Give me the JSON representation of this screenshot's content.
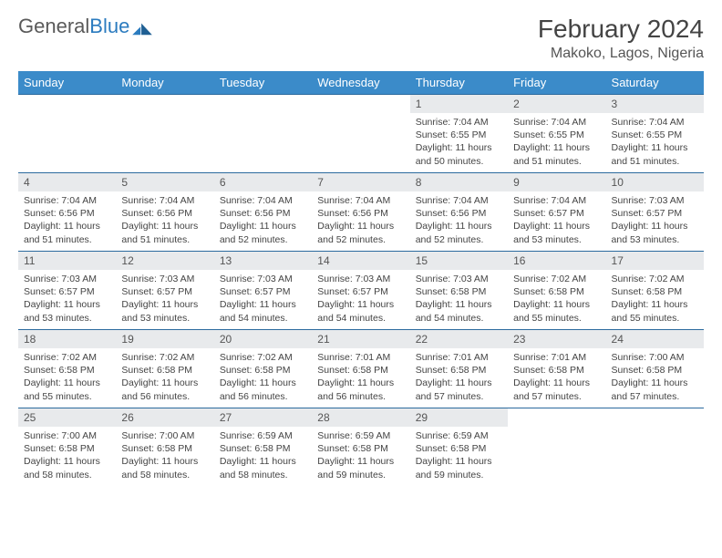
{
  "brand": {
    "part1": "General",
    "part2": "Blue"
  },
  "title": "February 2024",
  "location": "Makoko, Lagos, Nigeria",
  "colors": {
    "header_bg": "#3b8bc9",
    "row_border": "#2b6a9e",
    "daynum_bg": "#e8eaec",
    "text": "#444444"
  },
  "dayHeaders": [
    "Sunday",
    "Monday",
    "Tuesday",
    "Wednesday",
    "Thursday",
    "Friday",
    "Saturday"
  ],
  "weeks": [
    [
      {
        "n": "",
        "sr": "",
        "ss": "",
        "dl": ""
      },
      {
        "n": "",
        "sr": "",
        "ss": "",
        "dl": ""
      },
      {
        "n": "",
        "sr": "",
        "ss": "",
        "dl": ""
      },
      {
        "n": "",
        "sr": "",
        "ss": "",
        "dl": ""
      },
      {
        "n": "1",
        "sr": "Sunrise: 7:04 AM",
        "ss": "Sunset: 6:55 PM",
        "dl": "Daylight: 11 hours and 50 minutes."
      },
      {
        "n": "2",
        "sr": "Sunrise: 7:04 AM",
        "ss": "Sunset: 6:55 PM",
        "dl": "Daylight: 11 hours and 51 minutes."
      },
      {
        "n": "3",
        "sr": "Sunrise: 7:04 AM",
        "ss": "Sunset: 6:55 PM",
        "dl": "Daylight: 11 hours and 51 minutes."
      }
    ],
    [
      {
        "n": "4",
        "sr": "Sunrise: 7:04 AM",
        "ss": "Sunset: 6:56 PM",
        "dl": "Daylight: 11 hours and 51 minutes."
      },
      {
        "n": "5",
        "sr": "Sunrise: 7:04 AM",
        "ss": "Sunset: 6:56 PM",
        "dl": "Daylight: 11 hours and 51 minutes."
      },
      {
        "n": "6",
        "sr": "Sunrise: 7:04 AM",
        "ss": "Sunset: 6:56 PM",
        "dl": "Daylight: 11 hours and 52 minutes."
      },
      {
        "n": "7",
        "sr": "Sunrise: 7:04 AM",
        "ss": "Sunset: 6:56 PM",
        "dl": "Daylight: 11 hours and 52 minutes."
      },
      {
        "n": "8",
        "sr": "Sunrise: 7:04 AM",
        "ss": "Sunset: 6:56 PM",
        "dl": "Daylight: 11 hours and 52 minutes."
      },
      {
        "n": "9",
        "sr": "Sunrise: 7:04 AM",
        "ss": "Sunset: 6:57 PM",
        "dl": "Daylight: 11 hours and 53 minutes."
      },
      {
        "n": "10",
        "sr": "Sunrise: 7:03 AM",
        "ss": "Sunset: 6:57 PM",
        "dl": "Daylight: 11 hours and 53 minutes."
      }
    ],
    [
      {
        "n": "11",
        "sr": "Sunrise: 7:03 AM",
        "ss": "Sunset: 6:57 PM",
        "dl": "Daylight: 11 hours and 53 minutes."
      },
      {
        "n": "12",
        "sr": "Sunrise: 7:03 AM",
        "ss": "Sunset: 6:57 PM",
        "dl": "Daylight: 11 hours and 53 minutes."
      },
      {
        "n": "13",
        "sr": "Sunrise: 7:03 AM",
        "ss": "Sunset: 6:57 PM",
        "dl": "Daylight: 11 hours and 54 minutes."
      },
      {
        "n": "14",
        "sr": "Sunrise: 7:03 AM",
        "ss": "Sunset: 6:57 PM",
        "dl": "Daylight: 11 hours and 54 minutes."
      },
      {
        "n": "15",
        "sr": "Sunrise: 7:03 AM",
        "ss": "Sunset: 6:58 PM",
        "dl": "Daylight: 11 hours and 54 minutes."
      },
      {
        "n": "16",
        "sr": "Sunrise: 7:02 AM",
        "ss": "Sunset: 6:58 PM",
        "dl": "Daylight: 11 hours and 55 minutes."
      },
      {
        "n": "17",
        "sr": "Sunrise: 7:02 AM",
        "ss": "Sunset: 6:58 PM",
        "dl": "Daylight: 11 hours and 55 minutes."
      }
    ],
    [
      {
        "n": "18",
        "sr": "Sunrise: 7:02 AM",
        "ss": "Sunset: 6:58 PM",
        "dl": "Daylight: 11 hours and 55 minutes."
      },
      {
        "n": "19",
        "sr": "Sunrise: 7:02 AM",
        "ss": "Sunset: 6:58 PM",
        "dl": "Daylight: 11 hours and 56 minutes."
      },
      {
        "n": "20",
        "sr": "Sunrise: 7:02 AM",
        "ss": "Sunset: 6:58 PM",
        "dl": "Daylight: 11 hours and 56 minutes."
      },
      {
        "n": "21",
        "sr": "Sunrise: 7:01 AM",
        "ss": "Sunset: 6:58 PM",
        "dl": "Daylight: 11 hours and 56 minutes."
      },
      {
        "n": "22",
        "sr": "Sunrise: 7:01 AM",
        "ss": "Sunset: 6:58 PM",
        "dl": "Daylight: 11 hours and 57 minutes."
      },
      {
        "n": "23",
        "sr": "Sunrise: 7:01 AM",
        "ss": "Sunset: 6:58 PM",
        "dl": "Daylight: 11 hours and 57 minutes."
      },
      {
        "n": "24",
        "sr": "Sunrise: 7:00 AM",
        "ss": "Sunset: 6:58 PM",
        "dl": "Daylight: 11 hours and 57 minutes."
      }
    ],
    [
      {
        "n": "25",
        "sr": "Sunrise: 7:00 AM",
        "ss": "Sunset: 6:58 PM",
        "dl": "Daylight: 11 hours and 58 minutes."
      },
      {
        "n": "26",
        "sr": "Sunrise: 7:00 AM",
        "ss": "Sunset: 6:58 PM",
        "dl": "Daylight: 11 hours and 58 minutes."
      },
      {
        "n": "27",
        "sr": "Sunrise: 6:59 AM",
        "ss": "Sunset: 6:58 PM",
        "dl": "Daylight: 11 hours and 58 minutes."
      },
      {
        "n": "28",
        "sr": "Sunrise: 6:59 AM",
        "ss": "Sunset: 6:58 PM",
        "dl": "Daylight: 11 hours and 59 minutes."
      },
      {
        "n": "29",
        "sr": "Sunrise: 6:59 AM",
        "ss": "Sunset: 6:58 PM",
        "dl": "Daylight: 11 hours and 59 minutes."
      },
      {
        "n": "",
        "sr": "",
        "ss": "",
        "dl": ""
      },
      {
        "n": "",
        "sr": "",
        "ss": "",
        "dl": ""
      }
    ]
  ]
}
